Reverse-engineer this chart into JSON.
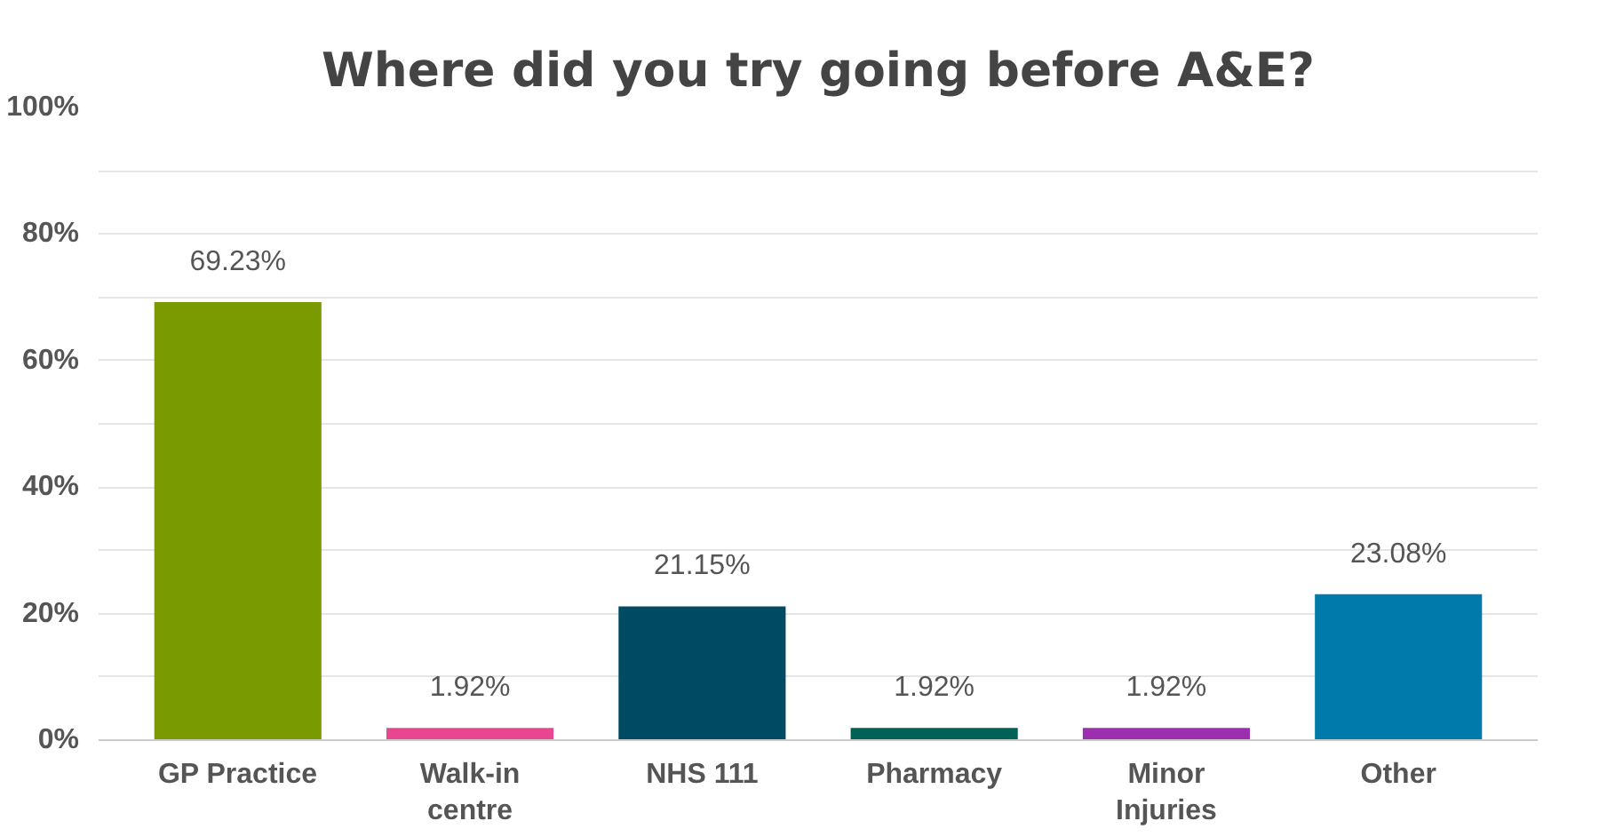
{
  "chart_data": {
    "type": "bar",
    "title": "Where did you try going before A&E?",
    "categories": [
      "GP Practice",
      "Walk-in\ncentre",
      "NHS 111",
      "Pharmacy",
      "Minor\nInjuries",
      "Other"
    ],
    "values": [
      69.23,
      1.92,
      21.15,
      1.92,
      1.92,
      23.08
    ],
    "colors": [
      "#7a9a01",
      "#e8468e",
      "#004a63",
      "#006156",
      "#9b2fae",
      "#007aaa"
    ],
    "value_labels": [
      "69.23%",
      "1.92%",
      "21.15%",
      "1.92%",
      "1.92%",
      "23.08%"
    ],
    "ylim": [
      0,
      100
    ],
    "yticks": [
      {
        "value": 0,
        "label": "0%"
      },
      {
        "value": 10,
        "label": null
      },
      {
        "value": 20,
        "label": "20%"
      },
      {
        "value": 30,
        "label": null
      },
      {
        "value": 40,
        "label": "40%"
      },
      {
        "value": 50,
        "label": null
      },
      {
        "value": 60,
        "label": "60%"
      },
      {
        "value": 70,
        "label": null
      },
      {
        "value": 80,
        "label": "80%"
      },
      {
        "value": 90,
        "label": null
      },
      {
        "value": 100,
        "label": "100%"
      }
    ],
    "grid": "y"
  }
}
